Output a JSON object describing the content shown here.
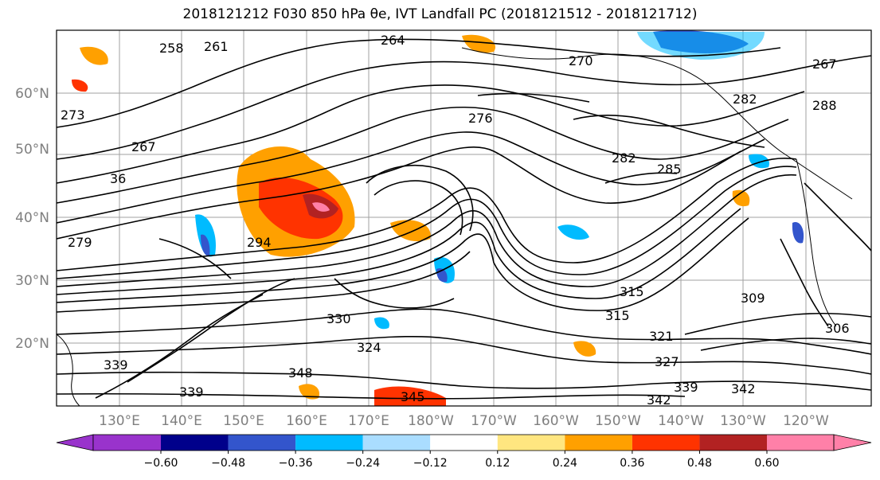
{
  "title": "2018121212 F030 850 hPa θe, IVT Landfall PC (2018121512 - 2018121712)",
  "map": {
    "lat_labels": [
      "60°N",
      "50°N",
      "40°N",
      "30°N",
      "20°N"
    ],
    "lon_labels": [
      "130°E",
      "140°E",
      "150°E",
      "160°E",
      "170°E",
      "180°W",
      "170°W",
      "160°W",
      "150°W",
      "140°W",
      "130°W",
      "120°W"
    ],
    "contour_labels": [
      "264",
      "258",
      "261",
      "270",
      "267",
      "276",
      "282",
      "288",
      "282",
      "285",
      "267",
      "279",
      "294",
      "315",
      "315",
      "309",
      "306",
      "321",
      "327",
      "324",
      "330",
      "348",
      "339",
      "339",
      "345",
      "342",
      "342",
      "339",
      "273",
      "36"
    ]
  },
  "colorbar": {
    "colors": [
      "#9933cc",
      "#00008b",
      "#3355cc",
      "#00bbff",
      "#aaddff",
      "#ffffff",
      "#ffe680",
      "#ffa000",
      "#ff3300",
      "#b22222",
      "#ff80a8"
    ],
    "ticks": [
      "−0.60",
      "−0.48",
      "−0.36",
      "−0.24",
      "−0.12",
      "0.12",
      "0.24",
      "0.36",
      "0.48",
      "0.60"
    ]
  }
}
